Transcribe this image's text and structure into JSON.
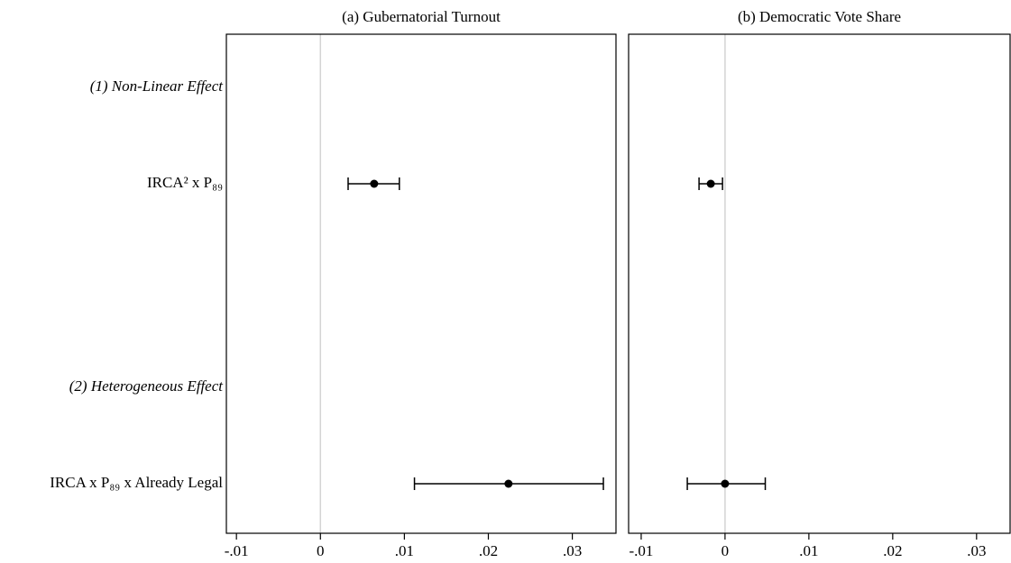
{
  "chart_data": [
    {
      "type": "errorbar",
      "title": "(a) Gubernatorial Turnout",
      "categories": [
        "(1) Non-Linear Effect",
        "IRCA² x P₈₉",
        "(2) Heterogeneous Effect",
        "IRCA x P₈₉ x Already Legal"
      ],
      "values": [
        null,
        0.0064,
        null,
        0.0224
      ],
      "lower": [
        null,
        0.0033,
        null,
        0.0112
      ],
      "upper": [
        null,
        0.0094,
        null,
        0.0337
      ],
      "color": "#000000",
      "xline": 0,
      "xlim": [
        -0.0112,
        0.0352
      ],
      "xticks": [
        {
          "value": -0.01,
          "label": "-.01"
        },
        0,
        {
          "value": 0.01,
          "label": ".01"
        },
        {
          "value": 0.02,
          "label": ".02"
        },
        {
          "value": 0.03,
          "label": ".03"
        }
      ]
    },
    {
      "type": "errorbar",
      "title": "(b) Democratic Vote Share",
      "values": [
        null,
        -0.0017,
        null,
        0.0
      ],
      "lower": [
        null,
        -0.0031,
        null,
        -0.0045
      ],
      "upper": [
        null,
        -0.0003,
        null,
        0.0048
      ],
      "color": "#000000",
      "xline": 0,
      "xlim": [
        -0.0115,
        0.034
      ],
      "xticks": [
        {
          "value": -0.01,
          "label": "-.01"
        },
        0,
        {
          "value": 0.01,
          "label": ".01"
        },
        {
          "value": 0.02,
          "label": ".02"
        },
        {
          "value": 0.03,
          "label": ".03"
        }
      ]
    }
  ]
}
